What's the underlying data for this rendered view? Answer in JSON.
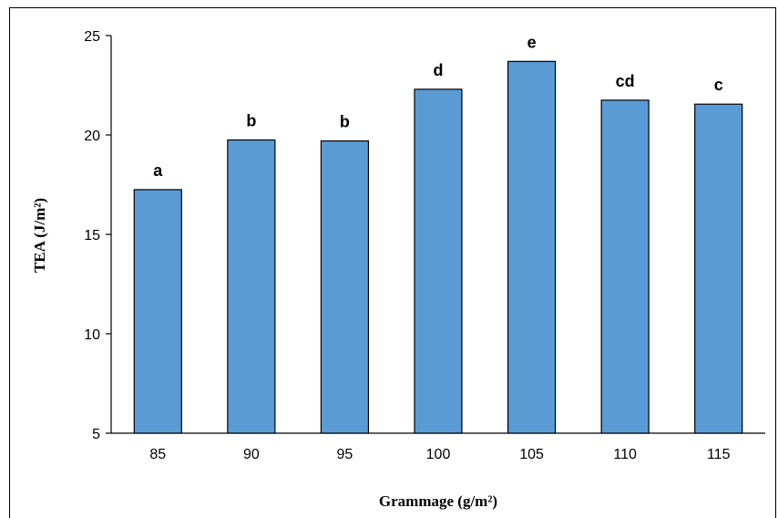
{
  "chart_data": {
    "type": "bar",
    "categories": [
      "85",
      "90",
      "95",
      "100",
      "105",
      "110",
      "115"
    ],
    "values": [
      17.25,
      19.75,
      19.7,
      22.3,
      23.7,
      21.75,
      21.55
    ],
    "data_labels": [
      "a",
      "b",
      "b",
      "d",
      "e",
      "cd",
      "c"
    ],
    "xlabel": "Grammage (g/m²)",
    "ylabel": "TEA (J/m²)",
    "ylim": [
      5,
      25
    ],
    "yticks": [
      5,
      10,
      15,
      20,
      25
    ],
    "grid": false,
    "bar_color": "#5b9bd5",
    "bar_edge_color": "#000000"
  }
}
